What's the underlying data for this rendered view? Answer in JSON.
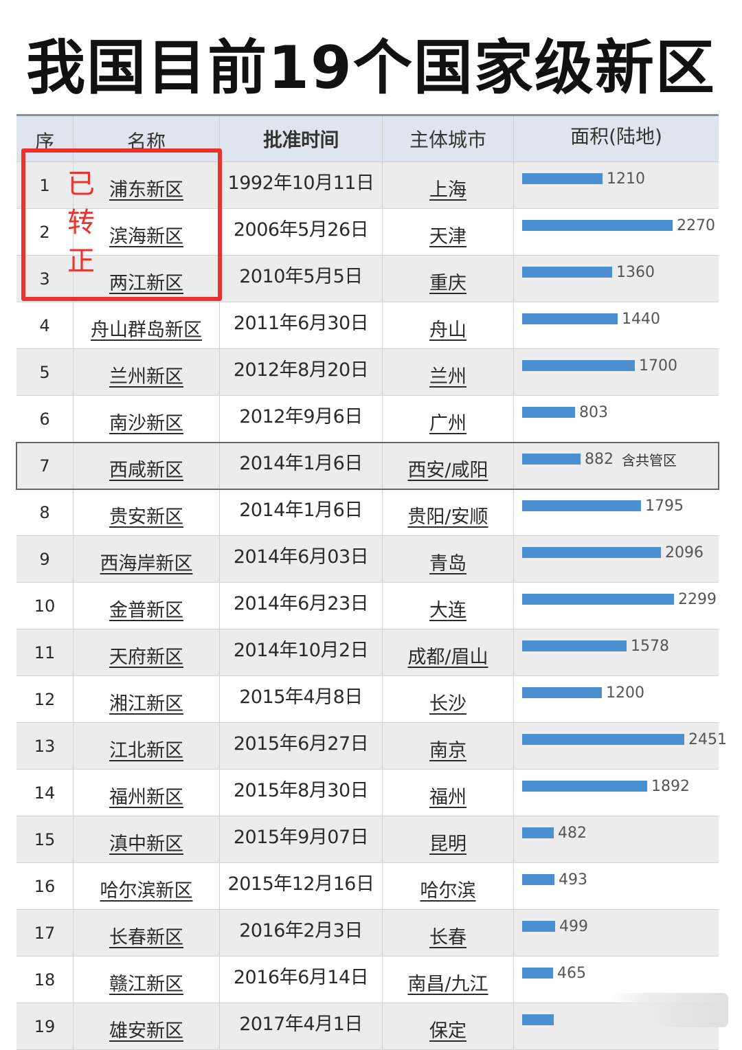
{
  "title": "我国目前19个国家级新区",
  "headers": {
    "seq": "序",
    "name": "名称",
    "date": "批准时间",
    "city": "主体城市",
    "area": "面积(陆地)"
  },
  "annotation": {
    "text": "已转正",
    "color": "#e8342c"
  },
  "bar_color": "#4a8fd0",
  "rows": [
    {
      "seq": "1",
      "name": "浦东新区",
      "date": "1992年10月11日",
      "city": "上海",
      "area": 1210,
      "area_label": "1210",
      "note": ""
    },
    {
      "seq": "2",
      "name": "滨海新区",
      "date": "2006年5月26日",
      "city": "天津",
      "area": 2270,
      "area_label": "2270",
      "note": ""
    },
    {
      "seq": "3",
      "name": "两江新区",
      "date": "2010年5月5日",
      "city": "重庆",
      "area": 1360,
      "area_label": "1360",
      "note": ""
    },
    {
      "seq": "4",
      "name": "舟山群岛新区",
      "date": "2011年6月30日",
      "city": "舟山",
      "area": 1440,
      "area_label": "1440",
      "note": ""
    },
    {
      "seq": "5",
      "name": "兰州新区",
      "date": "2012年8月20日",
      "city": "兰州",
      "area": 1700,
      "area_label": "1700",
      "note": ""
    },
    {
      "seq": "6",
      "name": "南沙新区",
      "date": "2012年9月6日",
      "city": "广州",
      "area": 803,
      "area_label": "803",
      "note": ""
    },
    {
      "seq": "7",
      "name": "西咸新区",
      "date": "2014年1月6日",
      "city": "西安/咸阳",
      "area": 882,
      "area_label": "882",
      "note": "含共管区"
    },
    {
      "seq": "8",
      "name": "贵安新区",
      "date": "2014年1月6日",
      "city": "贵阳/安顺",
      "area": 1795,
      "area_label": "1795",
      "note": ""
    },
    {
      "seq": "9",
      "name": "西海岸新区",
      "date": "2014年6月03日",
      "city": "青岛",
      "area": 2096,
      "area_label": "2096",
      "note": ""
    },
    {
      "seq": "10",
      "name": "金普新区",
      "date": "2014年6月23日",
      "city": "大连",
      "area": 2299,
      "area_label": "2299",
      "note": ""
    },
    {
      "seq": "11",
      "name": "天府新区",
      "date": "2014年10月2日",
      "city": "成都/眉山",
      "area": 1578,
      "area_label": "1578",
      "note": ""
    },
    {
      "seq": "12",
      "name": "湘江新区",
      "date": "2015年4月8日",
      "city": "长沙",
      "area": 1200,
      "area_label": "1200",
      "note": ""
    },
    {
      "seq": "13",
      "name": "江北新区",
      "date": "2015年6月27日",
      "city": "南京",
      "area": 2451,
      "area_label": "2451",
      "note": ""
    },
    {
      "seq": "14",
      "name": "福州新区",
      "date": "2015年8月30日",
      "city": "福州",
      "area": 1892,
      "area_label": "1892",
      "note": ""
    },
    {
      "seq": "15",
      "name": "滇中新区",
      "date": "2015年9月07日",
      "city": "昆明",
      "area": 482,
      "area_label": "482",
      "note": ""
    },
    {
      "seq": "16",
      "name": "哈尔滨新区",
      "date": "2015年12月16日",
      "city": "哈尔滨",
      "area": 493,
      "area_label": "493",
      "note": ""
    },
    {
      "seq": "17",
      "name": "长春新区",
      "date": "2016年2月3日",
      "city": "长春",
      "area": 499,
      "area_label": "499",
      "note": ""
    },
    {
      "seq": "18",
      "name": "赣江新区",
      "date": "2016年6月14日",
      "city": "南昌/九江",
      "area": 465,
      "area_label": "465",
      "note": ""
    },
    {
      "seq": "19",
      "name": "雄安新区",
      "date": "2017年4月1日",
      "city": "保定",
      "area": 475,
      "area_label": "",
      "note": ""
    }
  ]
}
